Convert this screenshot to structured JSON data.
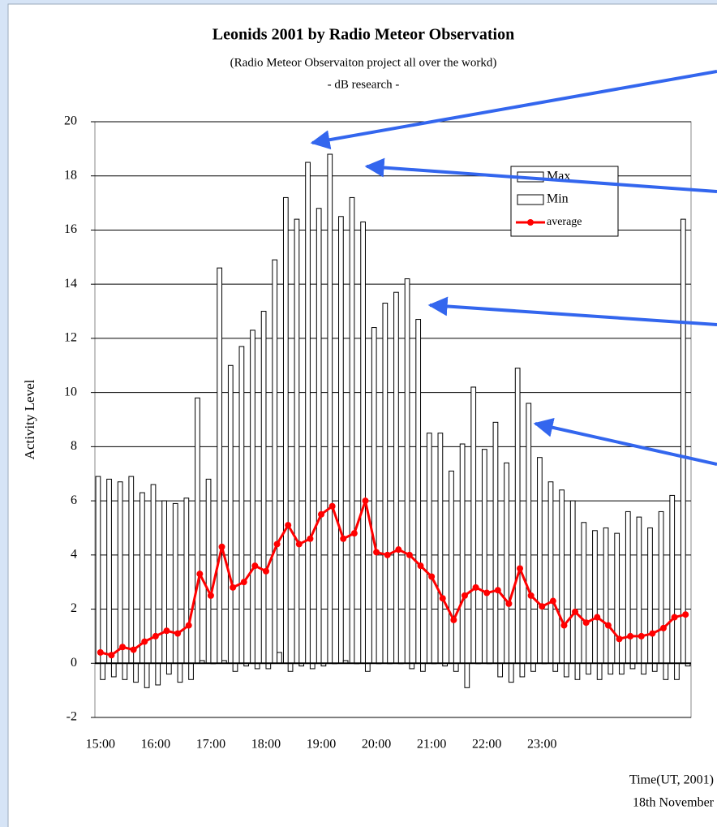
{
  "chart_data": {
    "type": "bar",
    "title": "Leonids 2001 by Radio Meteor Observation",
    "subtitle": "(Radio Meteor Observaiton project all over the workd)",
    "subtitle2": "- dB research -",
    "y_label": "Activity Level",
    "x_label": "Time(UT, 2001)",
    "x_label2": "18th November",
    "categories": [
      "15:00",
      null,
      null,
      null,
      null,
      "16:00",
      null,
      null,
      null,
      null,
      "17:00",
      null,
      null,
      null,
      null,
      "18:00",
      null,
      null,
      null,
      null,
      "19:00",
      null,
      null,
      null,
      null,
      "20:00",
      null,
      null,
      null,
      null,
      "21:00",
      null,
      null,
      null,
      null,
      "22:00",
      null,
      null,
      null,
      null,
      "23:00",
      null,
      null,
      null,
      null,
      null,
      null,
      null,
      null,
      null,
      null,
      null,
      null,
      null
    ],
    "series": [
      {
        "name": "Max",
        "type": "bar",
        "color": "#ffffff",
        "values": [
          6.9,
          6.8,
          6.7,
          6.9,
          6.3,
          6.6,
          6.0,
          5.9,
          6.1,
          9.8,
          6.8,
          14.6,
          11.0,
          11.7,
          12.3,
          13.0,
          14.9,
          17.2,
          16.4,
          18.5,
          16.8,
          18.8,
          16.5,
          17.2,
          16.3,
          12.4,
          13.3,
          13.7,
          14.2,
          12.7,
          8.5,
          8.5,
          7.1,
          8.1,
          10.2,
          7.9,
          8.9,
          7.4,
          10.9,
          9.6,
          7.6,
          6.7,
          6.4,
          6.0,
          5.2,
          4.9,
          5.0,
          4.8,
          5.6,
          5.4,
          5.0,
          5.6,
          6.2,
          16.4
        ]
      },
      {
        "name": "Min",
        "type": "bar",
        "color": "#ffffff",
        "values": [
          -0.6,
          -0.5,
          -0.6,
          -0.7,
          -0.9,
          -0.8,
          -0.4,
          -0.7,
          -0.6,
          0.1,
          0.0,
          0.1,
          -0.3,
          -0.1,
          -0.2,
          -0.2,
          0.4,
          -0.3,
          -0.1,
          -0.2,
          -0.1,
          0.0,
          0.1,
          0.0,
          -0.3,
          0.0,
          0.0,
          0.0,
          -0.2,
          -0.3,
          0.0,
          -0.1,
          -0.3,
          -0.9,
          0.0,
          0.0,
          -0.5,
          -0.7,
          -0.5,
          -0.3,
          0.0,
          -0.3,
          -0.5,
          -0.6,
          -0.4,
          -0.6,
          -0.4,
          -0.4,
          -0.2,
          -0.4,
          -0.3,
          -0.6,
          -0.6,
          -0.1
        ]
      },
      {
        "name": "average",
        "type": "line",
        "color": "#ff0000",
        "values": [
          0.4,
          0.3,
          0.6,
          0.5,
          0.8,
          1.0,
          1.2,
          1.1,
          1.4,
          3.3,
          2.5,
          4.3,
          2.8,
          3.0,
          3.6,
          3.4,
          4.4,
          5.1,
          4.4,
          4.6,
          5.5,
          5.8,
          4.6,
          4.8,
          6.0,
          4.1,
          4.0,
          4.2,
          4.0,
          3.6,
          3.2,
          2.4,
          1.6,
          2.5,
          2.8,
          2.6,
          2.7,
          2.2,
          3.5,
          2.5,
          2.1,
          2.3,
          1.4,
          1.9,
          1.5,
          1.7,
          1.4,
          0.9,
          1.0,
          1.0,
          1.1,
          1.3,
          1.7,
          1.8
        ]
      }
    ],
    "ylim": [
      -2,
      20
    ],
    "yticks": [
      -2,
      0,
      2,
      4,
      6,
      8,
      10,
      12,
      14,
      16,
      18,
      20
    ],
    "grid": true
  }
}
